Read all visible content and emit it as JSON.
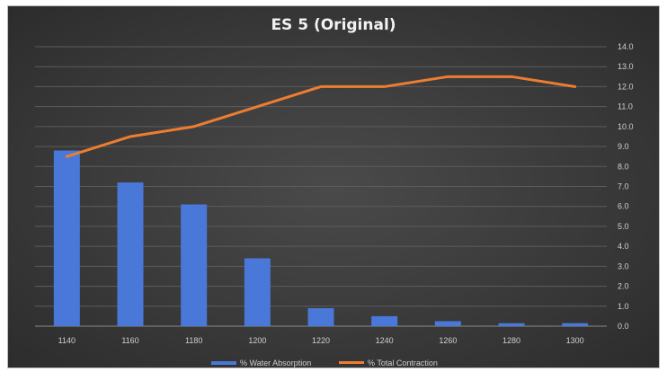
{
  "chart_data": {
    "type": "bar+line",
    "title": "ES 5 (Original)",
    "categories": [
      "1140",
      "1160",
      "1180",
      "1200",
      "1220",
      "1240",
      "1260",
      "1280",
      "1300"
    ],
    "series": [
      {
        "name": "% Water Absorption",
        "type": "bar",
        "values": [
          8.8,
          7.2,
          6.1,
          3.4,
          0.9,
          0.5,
          0.25,
          0.15,
          0.15
        ]
      },
      {
        "name": "% Total Contraction",
        "type": "line",
        "values": [
          8.5,
          9.5,
          10.0,
          11.0,
          12.0,
          12.0,
          12.5,
          12.5,
          12.0
        ]
      }
    ],
    "ylim": [
      0,
      14
    ],
    "yticks": [
      "0.0",
      "1.0",
      "2.0",
      "3.0",
      "4.0",
      "5.0",
      "6.0",
      "7.0",
      "8.0",
      "9.0",
      "10.0",
      "11.0",
      "12.0",
      "13.0",
      "14.0"
    ],
    "y_axis_side": "right",
    "grid": true,
    "legend_position": "bottom",
    "colors": {
      "bar": "#4a78d8",
      "line": "#ed7d31",
      "background": "#3a3a3a",
      "text": "#d0d0d0"
    }
  }
}
